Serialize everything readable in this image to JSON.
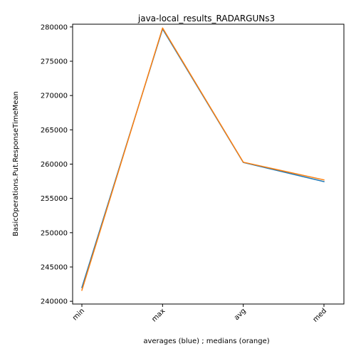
{
  "chart_data": {
    "type": "line",
    "title": "java-local_results_RADARGUNs3",
    "xlabel": "averages (blue) ; medians (orange)",
    "ylabel": "BasicOperations.Put.ResponseTimeMean",
    "categories": [
      "min",
      "max",
      "avg",
      "med"
    ],
    "y_ticks": [
      240000,
      245000,
      250000,
      255000,
      260000,
      265000,
      270000,
      275000,
      280000
    ],
    "y_tick_labels": [
      "240000",
      "245000",
      "250000",
      "255000",
      "260000",
      "265000",
      "270000",
      "275000",
      "280000"
    ],
    "ylim": [
      239600,
      280400
    ],
    "grid": false,
    "series": [
      {
        "values": [
          242000,
          279700,
          260250,
          257450
        ],
        "color": "#1f77b4"
      },
      {
        "values": [
          241600,
          279850,
          260280,
          257700
        ],
        "color": "#ff7f0e"
      }
    ]
  }
}
